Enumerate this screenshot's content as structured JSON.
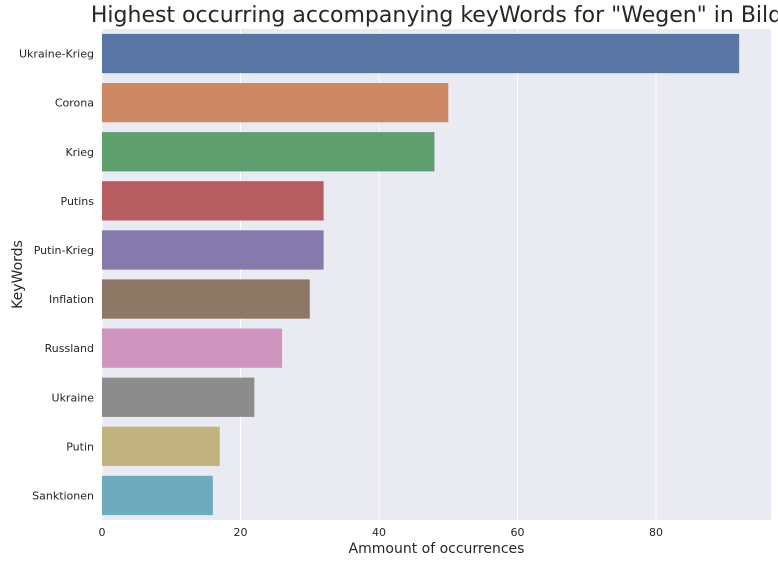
{
  "chart_data": {
    "type": "bar",
    "orientation": "horizontal",
    "title": "Highest occurring accompanying keyWords for \"Wegen\" in Bild",
    "xlabel": "Ammount of occurrences",
    "ylabel": "KeyWords",
    "categories": [
      "Ukraine-Krieg",
      "Corona",
      "Krieg",
      "Putins",
      "Putin-Krieg",
      "Inflation",
      "Russland",
      "Ukraine",
      "Putin",
      "Sanktionen"
    ],
    "values": [
      92,
      50,
      48,
      32,
      32,
      30,
      26,
      22,
      17,
      16
    ],
    "colors": [
      "#5875a4",
      "#cc8963",
      "#5f9e6e",
      "#b55d60",
      "#857aab",
      "#8d7866",
      "#d095bf",
      "#8c8c8c",
      "#c1b37f",
      "#6fabbf"
    ],
    "xlim": [
      0,
      96.6
    ],
    "xticks": [
      0,
      20,
      40,
      60,
      80
    ],
    "grid": true,
    "background": "#eaeaf2",
    "grid_color": "#ffffff"
  }
}
